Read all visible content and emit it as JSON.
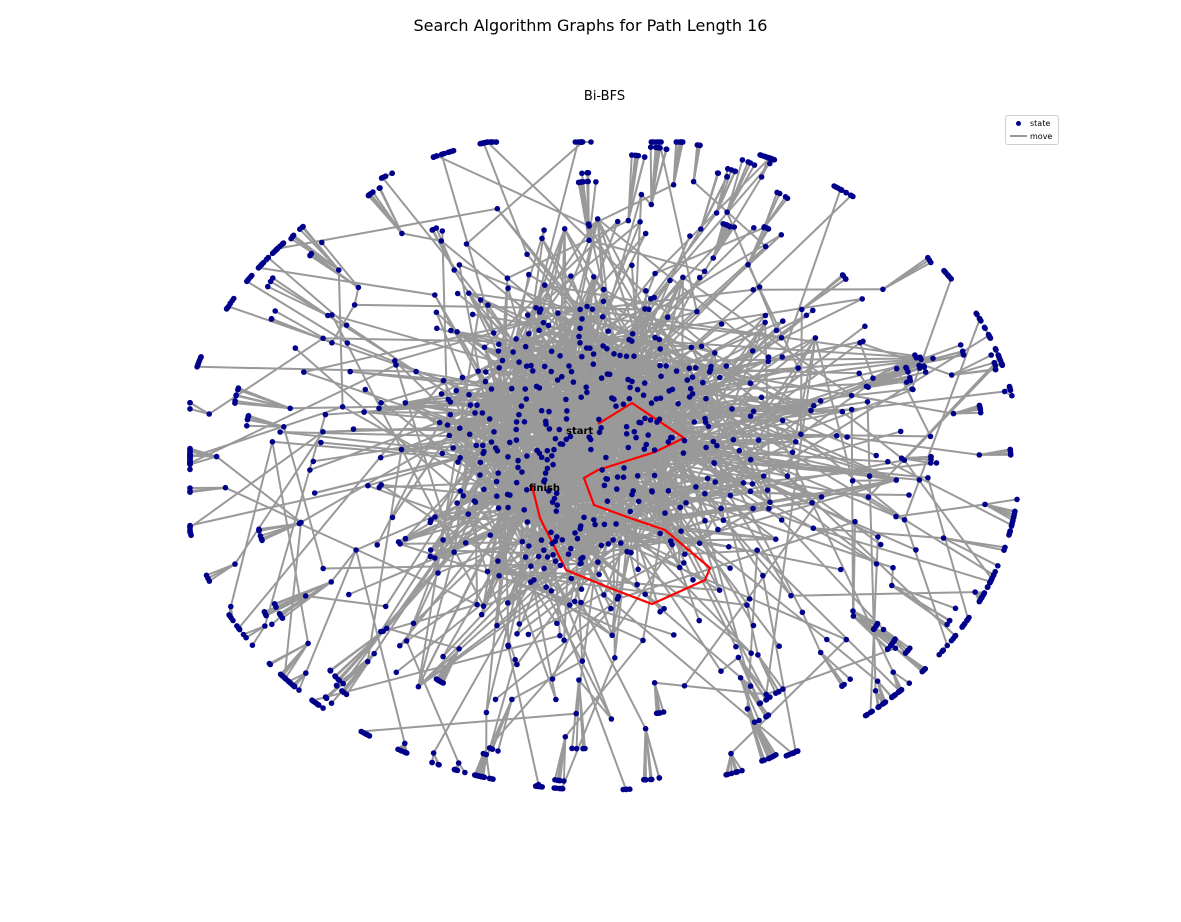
{
  "figure": {
    "title": "Search Algorithm Graphs for Path Length 16"
  },
  "subplot": {
    "title": "Bi-BFS"
  },
  "legend": {
    "position": "top-right",
    "items": [
      {
        "label": "state",
        "icon": "dot-icon",
        "color": "#00008b"
      },
      {
        "label": "move",
        "icon": "line-icon",
        "color": "#999999"
      }
    ]
  },
  "graph": {
    "node_color": "#00008b",
    "edge_color": "#999999",
    "path_color": "#ff0000",
    "start_label": "start",
    "finish_label": "finish"
  }
}
